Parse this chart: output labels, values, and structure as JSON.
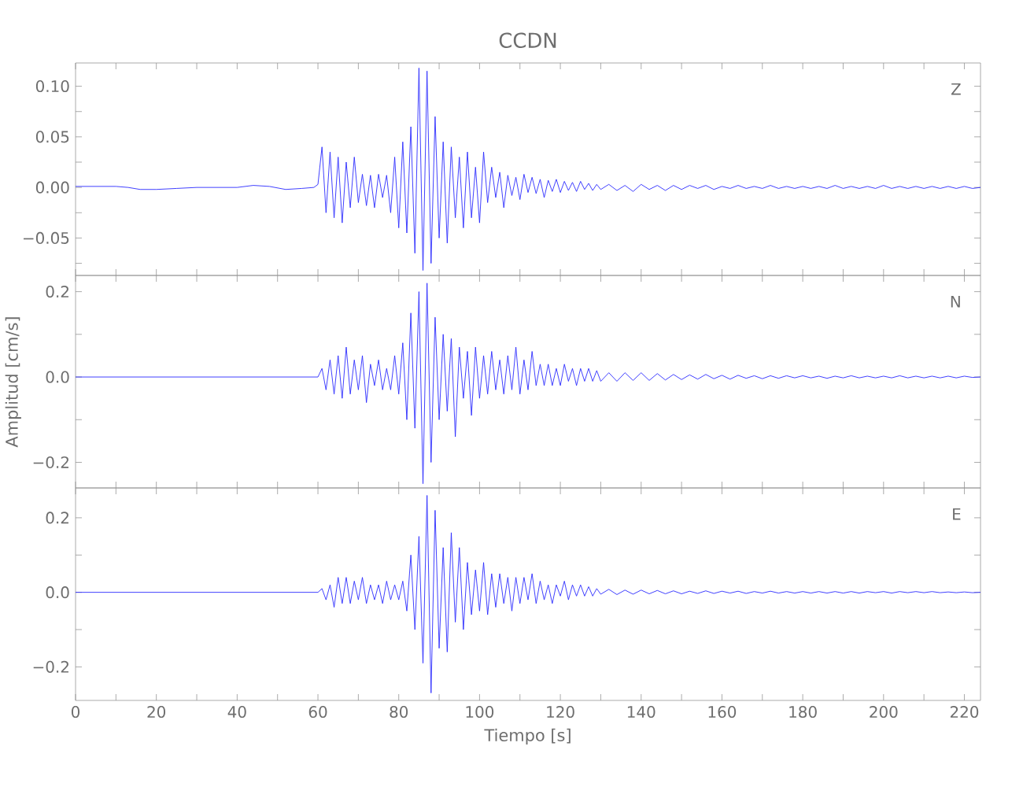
{
  "chart_data": [
    {
      "type": "line",
      "title": "CCDN",
      "annotations": [
        "Z"
      ],
      "color": "#2b2bff",
      "tick_labels": "y",
      "xlim": [
        0,
        224
      ],
      "ylim": [
        -0.087,
        0.123
      ],
      "xticks": [
        0,
        {
          "value": 10,
          "label": null
        },
        20,
        {
          "value": 30,
          "label": null
        },
        40,
        {
          "value": 50,
          "label": null
        },
        60,
        {
          "value": 70,
          "label": null
        },
        80,
        {
          "value": 90,
          "label": null
        },
        100,
        {
          "value": 110,
          "label": null
        },
        120,
        {
          "value": 130,
          "label": null
        },
        140,
        {
          "value": 150,
          "label": null
        },
        160,
        {
          "value": 170,
          "label": null
        },
        180,
        {
          "value": 190,
          "label": null
        },
        200,
        {
          "value": 210,
          "label": null
        },
        220
      ],
      "yticks": [
        {
          "value": -0.075,
          "label": null
        },
        {
          "value": -0.05,
          "label": "−0.05"
        },
        {
          "value": -0.025,
          "label": null
        },
        {
          "value": 0,
          "label": "0.00"
        },
        {
          "value": 0.025,
          "label": null
        },
        {
          "value": 0.05,
          "label": "0.05"
        },
        {
          "value": 0.075,
          "label": null
        },
        {
          "value": 0.1,
          "label": "0.10"
        }
      ],
      "x": [
        0,
        5,
        10,
        13,
        16,
        20,
        25,
        30,
        35,
        40,
        44,
        48,
        52,
        56,
        59,
        60,
        61,
        62,
        63,
        64,
        65,
        66,
        67,
        68,
        69,
        70,
        71,
        72,
        73,
        74,
        75,
        76,
        77,
        78,
        79,
        80,
        81,
        82,
        83,
        84,
        85,
        86,
        87,
        88,
        89,
        90,
        91,
        92,
        93,
        94,
        95,
        96,
        97,
        98,
        99,
        100,
        101,
        102,
        103,
        104,
        105,
        106,
        107,
        108,
        109,
        110,
        111,
        112,
        113,
        114,
        115,
        116,
        117,
        118,
        119,
        120,
        121,
        122,
        123,
        124,
        125,
        126,
        127,
        128,
        129,
        130,
        132,
        134,
        136,
        138,
        140,
        142,
        144,
        146,
        148,
        150,
        152,
        154,
        156,
        158,
        160,
        162,
        164,
        166,
        168,
        170,
        172,
        174,
        176,
        178,
        180,
        182,
        184,
        186,
        188,
        190,
        192,
        194,
        196,
        198,
        200,
        202,
        204,
        206,
        208,
        210,
        212,
        214,
        216,
        218,
        220,
        222,
        224
      ],
      "values": [
        0.001,
        0.001,
        0.001,
        0,
        -0.002,
        -0.002,
        -0.001,
        0,
        0,
        0,
        0.002,
        0.001,
        -0.002,
        -0.001,
        0,
        0.003,
        0.04,
        -0.025,
        0.035,
        -0.03,
        0.03,
        -0.035,
        0.025,
        -0.02,
        0.03,
        -0.015,
        0.013,
        -0.018,
        0.012,
        -0.02,
        0.013,
        -0.01,
        0.012,
        -0.025,
        0.03,
        -0.04,
        0.045,
        -0.045,
        0.06,
        -0.065,
        0.118,
        -0.082,
        0.115,
        -0.075,
        0.07,
        -0.05,
        0.045,
        -0.055,
        0.04,
        -0.03,
        0.03,
        -0.04,
        0.035,
        -0.03,
        0.02,
        -0.035,
        0.035,
        -0.015,
        0.02,
        -0.01,
        0.015,
        -0.02,
        0.012,
        -0.008,
        0.01,
        -0.012,
        0.013,
        -0.005,
        0.01,
        -0.006,
        0.008,
        -0.01,
        0.007,
        -0.004,
        0.008,
        -0.005,
        0.006,
        -0.003,
        0.005,
        -0.004,
        0.006,
        -0.002,
        0.004,
        -0.003,
        0.003,
        -0.002,
        0.003,
        -0.003,
        0.002,
        -0.004,
        0.003,
        -0.002,
        0.002,
        -0.003,
        0.002,
        -0.002,
        0.002,
        -0.001,
        0.002,
        -0.002,
        0.001,
        -0.001,
        0.002,
        -0.001,
        0.001,
        -0.001,
        0.002,
        -0.001,
        0.001,
        -0.001,
        0.001,
        -0.001,
        0.001,
        -0.001,
        0.002,
        -0.001,
        0.001,
        -0.001,
        0.001,
        -0.001,
        0.002,
        -0.001,
        0.001,
        -0.001,
        0.001,
        -0.001,
        0.001,
        -0.001,
        0.001,
        -0.001,
        0.001,
        -0.001,
        0
      ]
    },
    {
      "type": "line",
      "ylabel": "Amplitud  [cm/s]",
      "annotations": [
        "N"
      ],
      "color": "#2b2bff",
      "tick_labels": "y",
      "xlim": [
        0,
        224
      ],
      "ylim": [
        -0.26,
        0.238
      ],
      "xticks": [
        0,
        {
          "value": 10,
          "label": null
        },
        20,
        {
          "value": 30,
          "label": null
        },
        40,
        {
          "value": 50,
          "label": null
        },
        60,
        {
          "value": 70,
          "label": null
        },
        80,
        {
          "value": 90,
          "label": null
        },
        100,
        {
          "value": 110,
          "label": null
        },
        120,
        {
          "value": 130,
          "label": null
        },
        140,
        {
          "value": 150,
          "label": null
        },
        160,
        {
          "value": 170,
          "label": null
        },
        180,
        {
          "value": 190,
          "label": null
        },
        200,
        {
          "value": 210,
          "label": null
        },
        220
      ],
      "yticks": [
        {
          "value": -0.2,
          "label": "−0.2"
        },
        {
          "value": -0.1,
          "label": null
        },
        {
          "value": 0,
          "label": "0.0"
        },
        {
          "value": 0.1,
          "label": null
        },
        {
          "value": 0.2,
          "label": "0.2"
        }
      ],
      "x": [
        0,
        5,
        10,
        13,
        16,
        20,
        25,
        30,
        35,
        40,
        44,
        48,
        52,
        56,
        59,
        60,
        61,
        62,
        63,
        64,
        65,
        66,
        67,
        68,
        69,
        70,
        71,
        72,
        73,
        74,
        75,
        76,
        77,
        78,
        79,
        80,
        81,
        82,
        83,
        84,
        85,
        86,
        87,
        88,
        89,
        90,
        91,
        92,
        93,
        94,
        95,
        96,
        97,
        98,
        99,
        100,
        101,
        102,
        103,
        104,
        105,
        106,
        107,
        108,
        109,
        110,
        111,
        112,
        113,
        114,
        115,
        116,
        117,
        118,
        119,
        120,
        121,
        122,
        123,
        124,
        125,
        126,
        127,
        128,
        129,
        130,
        132,
        134,
        136,
        138,
        140,
        142,
        144,
        146,
        148,
        150,
        152,
        154,
        156,
        158,
        160,
        162,
        164,
        166,
        168,
        170,
        172,
        174,
        176,
        178,
        180,
        182,
        184,
        186,
        188,
        190,
        192,
        194,
        196,
        198,
        200,
        202,
        204,
        206,
        208,
        210,
        212,
        214,
        216,
        218,
        220,
        222,
        224
      ],
      "values": [
        0,
        0,
        0,
        0,
        0,
        0,
        0,
        0,
        0,
        0,
        0,
        0,
        0,
        0,
        0,
        0,
        0.02,
        -0.03,
        0.04,
        -0.04,
        0.05,
        -0.05,
        0.07,
        -0.04,
        0.04,
        -0.03,
        0.05,
        -0.06,
        0.03,
        -0.02,
        0.04,
        -0.03,
        0.02,
        -0.03,
        0.05,
        -0.04,
        0.08,
        -0.1,
        0.15,
        -0.12,
        0.2,
        -0.25,
        0.22,
        -0.2,
        0.14,
        -0.1,
        0.1,
        -0.08,
        0.09,
        -0.14,
        0.07,
        -0.05,
        0.06,
        -0.09,
        0.07,
        -0.05,
        0.05,
        -0.04,
        0.06,
        -0.03,
        0.04,
        -0.04,
        0.05,
        -0.03,
        0.07,
        -0.04,
        0.04,
        -0.03,
        0.06,
        -0.02,
        0.03,
        -0.02,
        0.03,
        -0.02,
        0.02,
        -0.02,
        0.03,
        -0.01,
        0.02,
        -0.02,
        0.02,
        -0.01,
        0.02,
        -0.01,
        0.015,
        -0.01,
        0.01,
        -0.01,
        0.01,
        -0.008,
        0.01,
        -0.008,
        0.008,
        -0.007,
        0.006,
        -0.006,
        0.005,
        -0.005,
        0.006,
        -0.004,
        0.004,
        -0.005,
        0.004,
        -0.003,
        0.003,
        -0.004,
        0.003,
        -0.003,
        0.003,
        -0.002,
        0.003,
        -0.002,
        0.002,
        -0.003,
        0.002,
        -0.002,
        0.003,
        -0.002,
        0.002,
        -0.002,
        0.002,
        -0.002,
        0.003,
        -0.002,
        0.002,
        -0.002,
        0.002,
        -0.002,
        0.002,
        -0.002,
        0.002,
        -0.001,
        0
      ]
    },
    {
      "type": "line",
      "xlabel": "Tiempo  [s]",
      "annotations": [
        "E"
      ],
      "color": "#2b2bff",
      "xlim": [
        0,
        224
      ],
      "ylim": [
        -0.29,
        0.28
      ],
      "xticks": [
        0,
        {
          "value": 10,
          "label": null
        },
        20,
        {
          "value": 30,
          "label": null
        },
        40,
        {
          "value": 50,
          "label": null
        },
        60,
        {
          "value": 70,
          "label": null
        },
        80,
        {
          "value": 90,
          "label": null
        },
        100,
        {
          "value": 110,
          "label": null
        },
        120,
        {
          "value": 130,
          "label": null
        },
        140,
        {
          "value": 150,
          "label": null
        },
        160,
        {
          "value": 170,
          "label": null
        },
        180,
        {
          "value": 190,
          "label": null
        },
        200,
        {
          "value": 210,
          "label": null
        },
        220
      ],
      "yticks": [
        {
          "value": -0.2,
          "label": "−0.2"
        },
        {
          "value": -0.1,
          "label": null
        },
        {
          "value": 0,
          "label": "0.0"
        },
        {
          "value": 0.1,
          "label": null
        },
        {
          "value": 0.2,
          "label": "0.2"
        }
      ],
      "x": [
        0,
        5,
        10,
        13,
        16,
        20,
        25,
        30,
        35,
        40,
        44,
        48,
        52,
        56,
        59,
        60,
        61,
        62,
        63,
        64,
        65,
        66,
        67,
        68,
        69,
        70,
        71,
        72,
        73,
        74,
        75,
        76,
        77,
        78,
        79,
        80,
        81,
        82,
        83,
        84,
        85,
        86,
        87,
        88,
        89,
        90,
        91,
        92,
        93,
        94,
        95,
        96,
        97,
        98,
        99,
        100,
        101,
        102,
        103,
        104,
        105,
        106,
        107,
        108,
        109,
        110,
        111,
        112,
        113,
        114,
        115,
        116,
        117,
        118,
        119,
        120,
        121,
        122,
        123,
        124,
        125,
        126,
        127,
        128,
        129,
        130,
        132,
        134,
        136,
        138,
        140,
        142,
        144,
        146,
        148,
        150,
        152,
        154,
        156,
        158,
        160,
        162,
        164,
        166,
        168,
        170,
        172,
        174,
        176,
        178,
        180,
        182,
        184,
        186,
        188,
        190,
        192,
        194,
        196,
        198,
        200,
        202,
        204,
        206,
        208,
        210,
        212,
        214,
        216,
        218,
        220,
        222,
        224
      ],
      "values": [
        0,
        0,
        0,
        0,
        0,
        0,
        0,
        0,
        0,
        0,
        0,
        0,
        0,
        0,
        0,
        0,
        0.01,
        -0.02,
        0.02,
        -0.04,
        0.04,
        -0.03,
        0.04,
        -0.03,
        0.03,
        -0.02,
        0.04,
        -0.03,
        0.02,
        -0.02,
        0.02,
        -0.03,
        0.03,
        -0.02,
        0.02,
        -0.02,
        0.03,
        -0.05,
        0.1,
        -0.1,
        0.15,
        -0.19,
        0.26,
        -0.27,
        0.22,
        -0.15,
        0.12,
        -0.16,
        0.16,
        -0.08,
        0.12,
        -0.1,
        0.08,
        -0.06,
        0.06,
        -0.05,
        0.08,
        -0.06,
        0.05,
        -0.04,
        0.05,
        -0.03,
        0.04,
        -0.05,
        0.04,
        -0.03,
        0.04,
        -0.02,
        0.05,
        -0.03,
        0.03,
        -0.02,
        0.02,
        -0.03,
        0.02,
        -0.01,
        0.03,
        -0.02,
        0.02,
        -0.01,
        0.02,
        -0.01,
        0.015,
        -0.01,
        0.01,
        -0.005,
        0.008,
        -0.006,
        0.006,
        -0.005,
        0.006,
        -0.004,
        0.005,
        -0.004,
        0.004,
        -0.004,
        0.003,
        -0.003,
        0.004,
        -0.003,
        0.003,
        -0.002,
        0.003,
        -0.003,
        0.002,
        -0.002,
        0.003,
        -0.002,
        0.002,
        -0.002,
        0.002,
        -0.002,
        0.002,
        -0.002,
        0.002,
        -0.002,
        0.002,
        -0.002,
        0.002,
        -0.001,
        0.002,
        -0.002,
        0.002,
        -0.001,
        0.002,
        -0.001,
        0.002,
        -0.001,
        0.001,
        -0.001,
        0.001,
        -0.001,
        0
      ]
    }
  ]
}
